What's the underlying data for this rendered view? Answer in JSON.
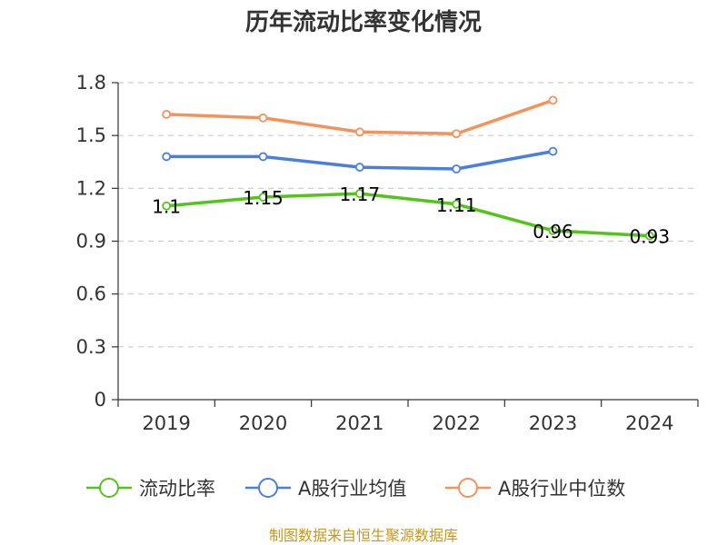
{
  "chart_data": {
    "type": "line",
    "title": "历年流动比率变化情况",
    "categories": [
      "2019",
      "2020",
      "2021",
      "2022",
      "2023",
      "2024"
    ],
    "ylim": [
      0,
      1.8
    ],
    "yticks": [
      "0",
      "0.3",
      "0.6",
      "0.9",
      "1.2",
      "1.5",
      "1.8"
    ],
    "grid": true,
    "legend_position": "bottom",
    "series": [
      {
        "name": "流动比率",
        "color": "#52c41a",
        "values": [
          1.1,
          1.15,
          1.17,
          1.11,
          0.96,
          0.93
        ],
        "labels": [
          "1.1",
          "1.15",
          "1.17",
          "1.11",
          "0.96",
          "0.93"
        ]
      },
      {
        "name": "A股行业均值",
        "color": "#4a7fdc",
        "values": [
          1.38,
          1.38,
          1.32,
          1.31,
          1.41,
          null
        ]
      },
      {
        "name": "A股行业中位数",
        "color": "#f5915a",
        "values": [
          1.62,
          1.6,
          1.52,
          1.51,
          1.7,
          null
        ]
      }
    ],
    "source": "制图数据来自恒生聚源数据库"
  }
}
